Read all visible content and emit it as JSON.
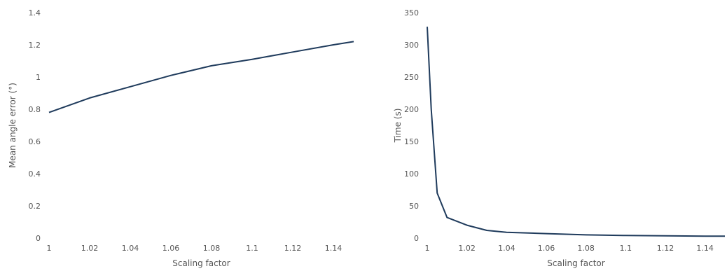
{
  "chart_data": [
    {
      "type": "line",
      "title": "",
      "xlabel": "Scaling factor",
      "ylabel": "Mean angle error (°)",
      "xlim": [
        1,
        1.15
      ],
      "ylim": [
        0,
        1.4
      ],
      "x_ticks": [
        1,
        1.02,
        1.04,
        1.06,
        1.08,
        1.1,
        1.12,
        1.14
      ],
      "x_tick_labels": [
        "1",
        "1.02",
        "1.04",
        "1.06",
        "1.08",
        "1.1",
        "1.12",
        "1.14"
      ],
      "y_ticks": [
        0,
        0.2,
        0.4,
        0.6,
        0.8,
        1,
        1.2,
        1.4
      ],
      "y_tick_labels": [
        "0",
        "0.2",
        "0.4",
        "0.6",
        "0.8",
        "1",
        "1.2",
        "1.4"
      ],
      "grid": false,
      "line_color": "#1f3b5c",
      "series": [
        {
          "x": [
            1.0,
            1.02,
            1.04,
            1.06,
            1.08,
            1.1,
            1.12,
            1.14,
            1.15
          ],
          "values": [
            0.78,
            0.87,
            0.94,
            1.01,
            1.07,
            1.11,
            1.155,
            1.2,
            1.22
          ]
        }
      ]
    },
    {
      "type": "line",
      "title": "",
      "xlabel": "Scaling factor",
      "ylabel": "Time (s)",
      "xlim": [
        1,
        1.15
      ],
      "ylim": [
        0,
        350
      ],
      "x_ticks": [
        1,
        1.02,
        1.04,
        1.06,
        1.08,
        1.1,
        1.12,
        1.14
      ],
      "x_tick_labels": [
        "1",
        "1.02",
        "1.04",
        "1.06",
        "1.08",
        "1.1",
        "1.12",
        "1.14"
      ],
      "y_ticks": [
        0,
        50,
        100,
        150,
        200,
        250,
        300,
        350
      ],
      "y_tick_labels": [
        "0",
        "50",
        "100",
        "150",
        "200",
        "250",
        "300",
        "350"
      ],
      "grid": false,
      "line_color": "#1f3b5c",
      "series": [
        {
          "x": [
            1.0,
            1.002,
            1.005,
            1.01,
            1.02,
            1.03,
            1.04,
            1.06,
            1.08,
            1.1,
            1.12,
            1.14,
            1.15
          ],
          "values": [
            328,
            200,
            70,
            32,
            20,
            12,
            9,
            7,
            5,
            4,
            3.5,
            3,
            3
          ]
        }
      ]
    }
  ]
}
